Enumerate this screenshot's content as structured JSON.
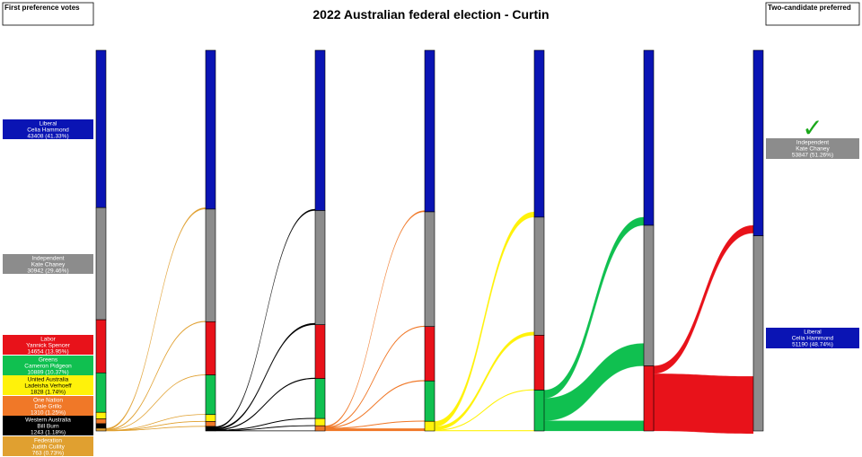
{
  "title": "2022 Australian federal election - Curtin",
  "first_pref_label": "First preference votes",
  "tcp_label": "Two-candidate preferred",
  "colors": {
    "liberal": "#0a14b4",
    "independent": "#8c8c8c",
    "labor": "#e8121a",
    "greens": "#10c050",
    "united_australia": "#fff20a",
    "one_nation": "#f07828",
    "western_australia": "#000000",
    "federation": "#e0a030"
  },
  "first_preferences": [
    {
      "key": "liberal",
      "party": "Liberal",
      "candidate": "Celia Hammond",
      "votes_text": "43408 (41.33%)",
      "votes": 43408
    },
    {
      "key": "independent",
      "party": "Independent",
      "candidate": "Kate Chaney",
      "votes_text": "30942 (29.46%)",
      "votes": 30942
    },
    {
      "key": "labor",
      "party": "Labor",
      "candidate": "Yannick Spencer",
      "votes_text": "14654 (13.95%)",
      "votes": 14654
    },
    {
      "key": "greens",
      "party": "Greens",
      "candidate": "Cameron Pidgeon",
      "votes_text": "10889 (10.37%)",
      "votes": 10889
    },
    {
      "key": "united_australia",
      "party": "United Australia",
      "candidate": "Ladeisha Verhoeff",
      "votes_text": "1828 (1.74%)",
      "votes": 1828
    },
    {
      "key": "one_nation",
      "party": "One Nation",
      "candidate": "Dale Grillo",
      "votes_text": "1310 (1.25%)",
      "votes": 1310
    },
    {
      "key": "western_australia",
      "party": "Western Australia",
      "candidate": "Bill Burn",
      "votes_text": "1243 (1.18%)",
      "votes": 1243
    },
    {
      "key": "federation",
      "party": "Federation",
      "candidate": "Judith Cullity",
      "votes_text": "763 (0.73%)",
      "votes": 763
    }
  ],
  "two_candidate_preferred": [
    {
      "key": "independent",
      "party": "Independent",
      "candidate": "Kate Chaney",
      "votes_text": "53847 (51.26%)",
      "votes": 53847,
      "winner": true
    },
    {
      "key": "liberal",
      "party": "Liberal",
      "candidate": "Celia Hammond",
      "votes_text": "51190 (48.74%)",
      "votes": 51190,
      "winner": false
    }
  ],
  "winner_mark": "✓"
}
